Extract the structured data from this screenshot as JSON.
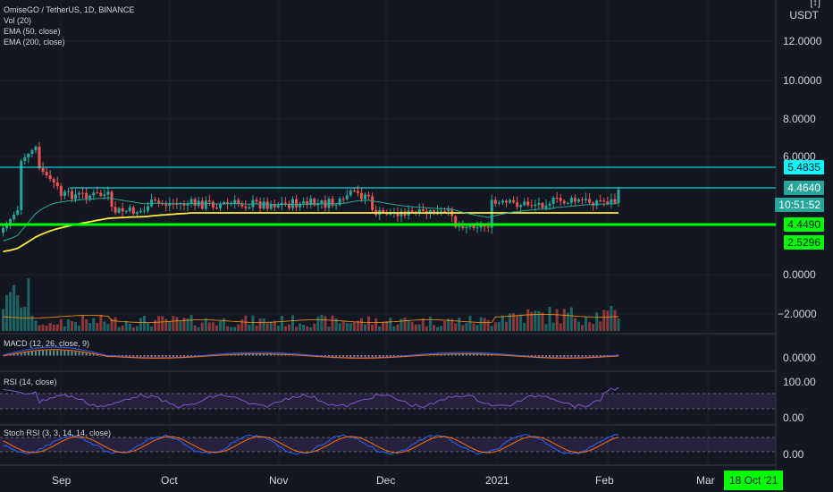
{
  "header": {
    "title": "OmiseGO / TetherUS, 1D, BINANCE",
    "indicators": [
      "Vol (20)",
      "EMA (50, close)",
      "EMA (200, close)"
    ]
  },
  "price_axis": {
    "unit_label": "USDT",
    "unit_icon": "logarithmic-scale-icon",
    "ticks": [
      "12.0000",
      "10.0000",
      "8.0000",
      "6.0000",
      "0.0000",
      "−2.0000"
    ]
  },
  "price_tags": [
    {
      "label": "5.4835",
      "bg": "#00ffff",
      "fg": "#131722"
    },
    {
      "label": "4.4640",
      "bg": "#26a69a",
      "fg": "#ffffff"
    },
    {
      "label": "10:51:52",
      "bg": "#26a69a",
      "fg": "#ffffff"
    },
    {
      "label": "4.4490",
      "bg": "#00ff00",
      "fg": "#131722"
    },
    {
      "label": "2.5296",
      "bg": "#00ff00",
      "fg": "#131722"
    }
  ],
  "panes": {
    "macd": {
      "label": "MACD (12, 26, close, 9)",
      "ticks": [
        "0.0000"
      ]
    },
    "rsi": {
      "label": "RSI (14, close)",
      "ticks": [
        "100.00",
        "0.00"
      ]
    },
    "stoch": {
      "label": "Stoch RSI (3, 3, 14, 14, close)",
      "ticks": [
        "0.00"
      ]
    }
  },
  "time_axis": {
    "labels": [
      "Sep",
      "Oct",
      "Nov",
      "Dec",
      "2021",
      "Feb",
      "Mar"
    ],
    "cursor_date": "18 Oct '21"
  },
  "colors": {
    "background": "#131722",
    "up": "#26a69a",
    "down": "#ef5350",
    "ema50": "#26a69a",
    "ema200": "#ffeb3b",
    "resistance": "#00ffff",
    "support": "#00ff00",
    "rsi_line": "#7e57c2",
    "macd_line": "#2962ff",
    "signal_line": "#ff6d00"
  },
  "lines": {
    "resistance_high": 5.4835,
    "resistance_mid": 4.464,
    "support": 2.5296
  }
}
